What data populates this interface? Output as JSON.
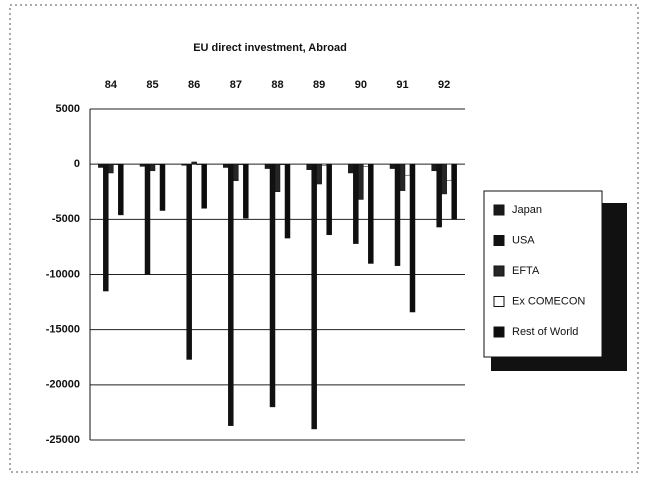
{
  "chart_data": {
    "type": "bar",
    "title": "EU direct investment, Abroad",
    "categories": [
      "84",
      "85",
      "86",
      "87",
      "88",
      "89",
      "90",
      "91",
      "92"
    ],
    "series": [
      {
        "name": "Japan",
        "color": "#1a1a1a",
        "values": [
          -300,
          -200,
          -100,
          -300,
          -400,
          -500,
          -800,
          -400,
          -600
        ]
      },
      {
        "name": "USA",
        "color": "#111111",
        "values": [
          -11500,
          -10000,
          -17700,
          -23700,
          -22000,
          -24000,
          -7200,
          -9200,
          -5700
        ]
      },
      {
        "name": "EFTA",
        "color": "#262626",
        "values": [
          -800,
          -600,
          200,
          -1500,
          -2500,
          -1800,
          -3200,
          -2400,
          -2700
        ]
      },
      {
        "name": "Ex COMECON",
        "color": "#ffffff",
        "values": [
          0,
          0,
          0,
          0,
          0,
          -100,
          -200,
          -1000,
          -1500
        ]
      },
      {
        "name": "Rest of World",
        "color": "#0d0d0d",
        "values": [
          -4600,
          -4200,
          -4000,
          -4900,
          -6700,
          -6400,
          -9000,
          -13400,
          -5000
        ]
      }
    ],
    "ylim": [
      -25000,
      5000
    ],
    "yticks": [
      5000,
      0,
      -5000,
      -10000,
      -15000,
      -20000,
      -25000
    ],
    "grid": true
  }
}
